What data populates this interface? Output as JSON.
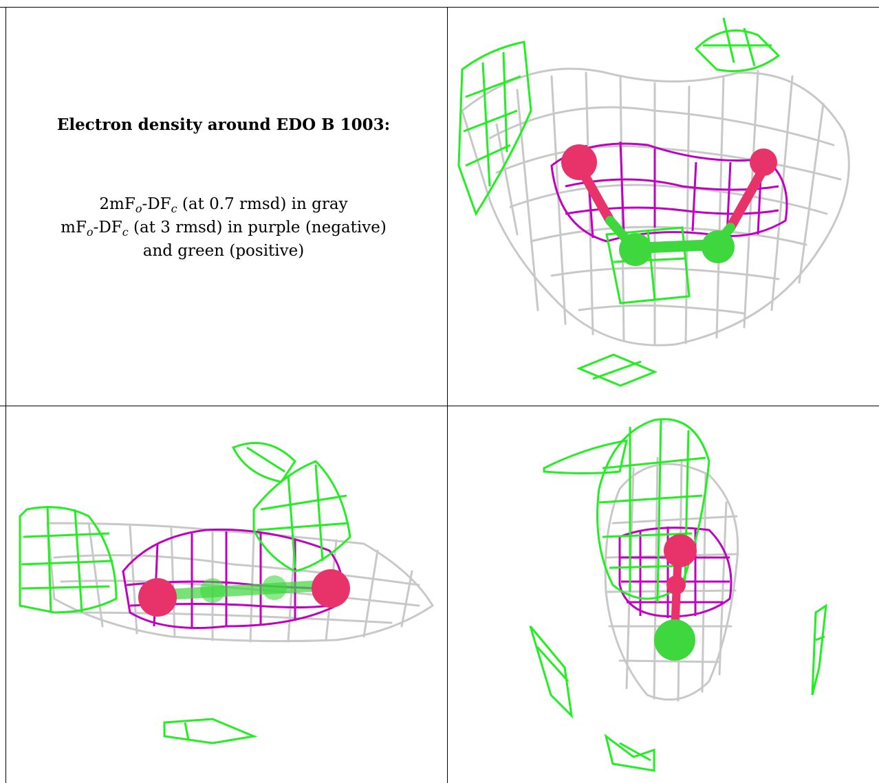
{
  "caption": {
    "title": "Electron density around EDO B 1003:",
    "line1": {
      "pre": "2mF",
      "sub1": "o",
      "mid": "-DF",
      "sub2": "c",
      "post": " (at 0.7 rmsd) in gray"
    },
    "line2": {
      "pre": "mF",
      "sub1": "o",
      "mid": "-DF",
      "sub2": "c",
      "post": " (at 3 rmsd) in purple (negative)"
    },
    "line3": "and green (positive)"
  },
  "colors": {
    "gray_mesh": "#c8c8c8",
    "purple_mesh": "#c000c0",
    "green_mesh": "#22ee22",
    "oxygen": "#e8336a",
    "carbon": "#3ed83e"
  },
  "views": [
    {
      "name": "top-right-view"
    },
    {
      "name": "bottom-left-view"
    },
    {
      "name": "bottom-right-view"
    }
  ]
}
